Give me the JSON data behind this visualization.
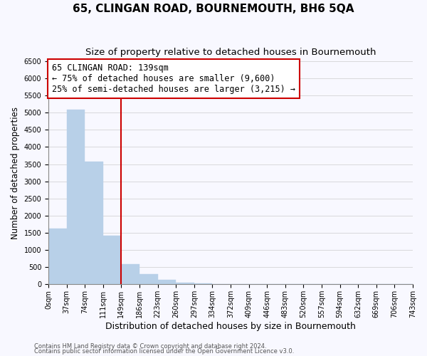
{
  "title": "65, CLINGAN ROAD, BOURNEMOUTH, BH6 5QA",
  "subtitle": "Size of property relative to detached houses in Bournemouth",
  "xlabel": "Distribution of detached houses by size in Bournemouth",
  "ylabel": "Number of detached properties",
  "bar_values": [
    1620,
    5080,
    3580,
    1420,
    580,
    295,
    140,
    50,
    20,
    0,
    0,
    0,
    0,
    0,
    0,
    0,
    0,
    0,
    0,
    0
  ],
  "bar_labels": [
    "0sqm",
    "37sqm",
    "74sqm",
    "111sqm",
    "149sqm",
    "186sqm",
    "223sqm",
    "260sqm",
    "297sqm",
    "334sqm",
    "372sqm",
    "409sqm",
    "446sqm",
    "483sqm",
    "520sqm",
    "557sqm",
    "594sqm",
    "632sqm",
    "669sqm",
    "706sqm",
    "743sqm"
  ],
  "bar_color": "#b8d0e8",
  "bar_edge_color": "#b8d0e8",
  "vline_color": "#cc0000",
  "vline_x_index": 4,
  "annotation_title": "65 CLINGAN ROAD: 139sqm",
  "annotation_line1": "← 75% of detached houses are smaller (9,600)",
  "annotation_line2": "25% of semi-detached houses are larger (3,215) →",
  "annotation_box_color": "#ffffff",
  "annotation_box_edge": "#cc0000",
  "ylim": [
    0,
    6500
  ],
  "yticks": [
    0,
    500,
    1000,
    1500,
    2000,
    2500,
    3000,
    3500,
    4000,
    4500,
    5000,
    5500,
    6000,
    6500
  ],
  "grid_color": "#cccccc",
  "bg_color": "#f8f8ff",
  "footnote1": "Contains HM Land Registry data © Crown copyright and database right 2024.",
  "footnote2": "Contains public sector information licensed under the Open Government Licence v3.0.",
  "title_fontsize": 11,
  "subtitle_fontsize": 9.5,
  "tick_fontsize": 7,
  "ylabel_fontsize": 8.5,
  "xlabel_fontsize": 9,
  "annot_fontsize": 8.5
}
